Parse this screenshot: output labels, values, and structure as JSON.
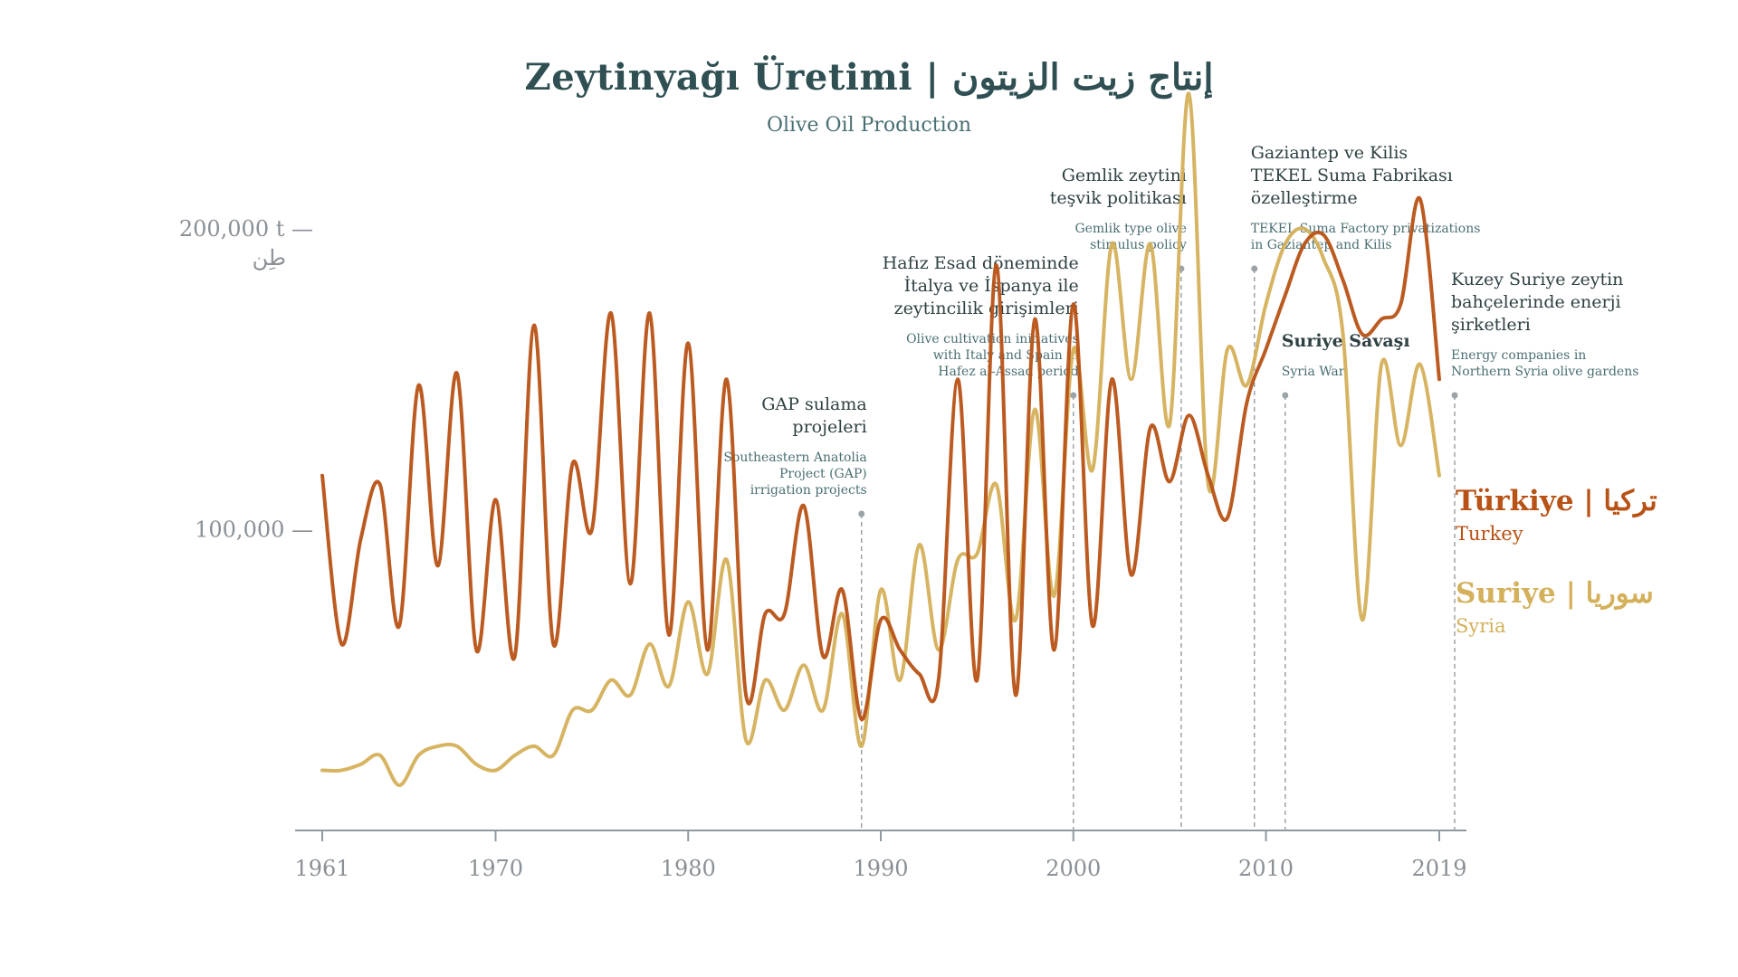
{
  "header": {
    "title": "Zeytinyağı Üretimi  |  إنتاج زيت الزيتون",
    "subtitle": "Olive Oil Production"
  },
  "colors": {
    "turkey": "#b85215",
    "syria": "#d4b05a",
    "axis": "#8f9aa0",
    "annotation_title": "#2f4144",
    "annotation_sub": "#4a6f73",
    "annotation_line": "#9aa3a8",
    "tick_text": "#8a9096"
  },
  "chart_data": {
    "type": "line",
    "title": "Zeytinyağı Üretimi | إنتاج زيت الزيتون",
    "subtitle": "Olive Oil Production",
    "xlabel": "",
    "ylabel": "",
    "xlim": [
      1961,
      2019
    ],
    "ylim": [
      0,
      225000
    ],
    "x_ticks": [
      1961,
      1970,
      1980,
      1990,
      2000,
      2010,
      2019
    ],
    "y_ticks": [
      {
        "value": 200000,
        "label": "200,000 t —",
        "label2": "طِن"
      },
      {
        "value": 100000,
        "label": "100,000 —",
        "label2": ""
      }
    ],
    "grid": false,
    "legend_placement": "right",
    "x": [
      1961,
      1962,
      1963,
      1964,
      1965,
      1966,
      1967,
      1968,
      1969,
      1970,
      1971,
      1972,
      1973,
      1974,
      1975,
      1976,
      1977,
      1978,
      1979,
      1980,
      1981,
      1982,
      1983,
      1984,
      1985,
      1986,
      1987,
      1988,
      1989,
      1990,
      1991,
      1992,
      1993,
      1994,
      1995,
      1996,
      1997,
      1998,
      1999,
      2000,
      2001,
      2002,
      2003,
      2004,
      2005,
      2006,
      2007,
      2008,
      2009,
      2010,
      2011,
      2012,
      2013,
      2014,
      2015,
      2016,
      2017,
      2018,
      2019
    ],
    "series": [
      {
        "name": "Türkiye | تركيا",
        "name_en": "Turkey",
        "values": [
          118000,
          62000,
          97000,
          115000,
          68000,
          148000,
          88000,
          152000,
          60000,
          110000,
          58000,
          168000,
          62000,
          122000,
          100000,
          172000,
          82000,
          172000,
          65000,
          162000,
          60000,
          150000,
          45000,
          72000,
          72000,
          108000,
          58000,
          80000,
          37000,
          70000,
          60000,
          52000,
          50000,
          150000,
          50000,
          188000,
          45000,
          170000,
          60000,
          175000,
          68000,
          150000,
          85000,
          134000,
          116000,
          138000,
          118000,
          104000,
          142000,
          160000,
          178000,
          195000,
          198000,
          183000,
          165000,
          170000,
          175000,
          210000,
          150000
        ]
      },
      {
        "name": "Suriye | سوريا",
        "name_en": "Syria",
        "values": [
          20000,
          20000,
          22000,
          25000,
          15000,
          25000,
          28000,
          28000,
          22000,
          20000,
          25000,
          28000,
          25000,
          40000,
          40000,
          50000,
          45000,
          62000,
          48000,
          76000,
          52000,
          90000,
          30000,
          50000,
          40000,
          55000,
          40000,
          72000,
          28000,
          80000,
          50000,
          95000,
          60000,
          90000,
          92000,
          115000,
          70000,
          140000,
          78000,
          160000,
          120000,
          195000,
          150000,
          195000,
          135000,
          245000,
          115000,
          160000,
          148000,
          175000,
          195000,
          200000,
          190000,
          165000,
          70000,
          155000,
          128000,
          155000,
          118000
        ]
      }
    ],
    "annotations": [
      {
        "year": 1989,
        "title_lines": [
          "GAP sulama",
          "projeleri"
        ],
        "sub_lines": [
          "Southeastern Anatolia",
          "Project (GAP)",
          "irrigation projects"
        ],
        "align": "end"
      },
      {
        "year": 2000,
        "title_lines": [
          "Hafız Esad döneminde",
          "İtalya ve İspanya ile",
          "zeytincilik girişimleri"
        ],
        "sub_lines": [
          "Olive cultivation initiatives",
          "with Italy and Spain in",
          "Hafez al-Assad period"
        ],
        "align": "end"
      },
      {
        "year": 2005.6,
        "title_lines": [
          "Gemlik zeytini",
          "teşvik politikası"
        ],
        "sub_lines": [
          "Gemlik type olive",
          "stimulus policy"
        ],
        "align": "end"
      },
      {
        "year": 2009.4,
        "title_lines": [
          "Gaziantep ve Kilis",
          "TEKEL Suma Fabrikası",
          "özelleştirme"
        ],
        "sub_lines": [
          "TEKEL Suma Factory privatizations",
          "in Gaziantep and Kilis"
        ],
        "align": "start"
      },
      {
        "year": 2011,
        "title_lines": [
          "Suriye Savaşı"
        ],
        "sub_lines": [
          "Syria War"
        ],
        "align": "start"
      },
      {
        "year": 2019.8,
        "title_lines": [
          "Kuzey Suriye zeytin",
          "bahçelerinde enerji",
          "şirketleri"
        ],
        "sub_lines": [
          "Energy companies in",
          "Northern Syria olive gardens"
        ],
        "align": "start"
      }
    ]
  }
}
